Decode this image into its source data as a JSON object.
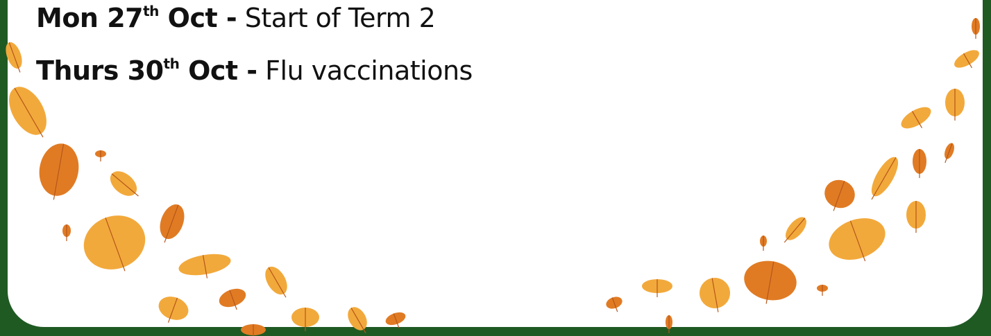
{
  "events": [
    {
      "day": "Mon",
      "date": "27",
      "suffix": "th",
      "month": "Oct",
      "separator": "-",
      "description": "Start of Term 2"
    },
    {
      "day": "Thurs",
      "date": "30",
      "suffix": "th",
      "month": "Oct",
      "separator": "-",
      "description": "Flu vaccinations"
    }
  ]
}
